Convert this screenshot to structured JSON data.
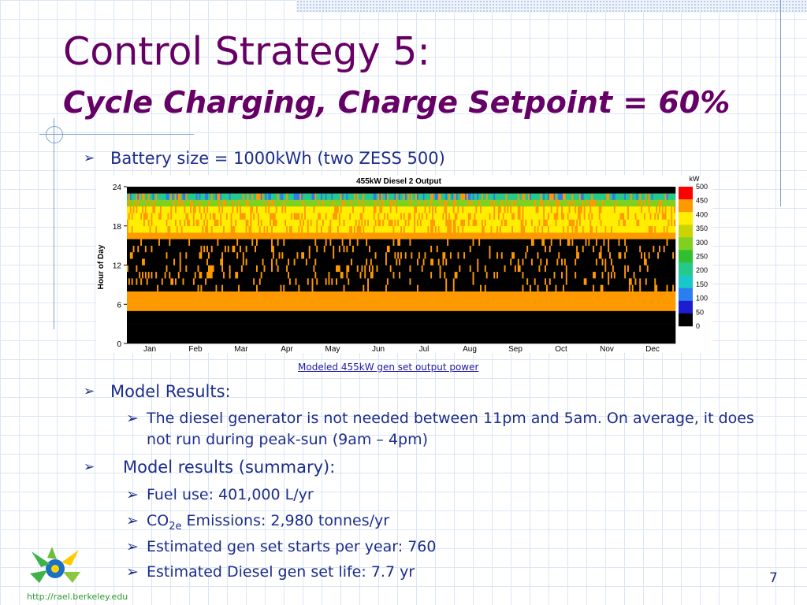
{
  "slide": {
    "title": "Control Strategy 5:",
    "subtitle": "Cycle Charging, Charge Setpoint = 60%",
    "page_number": "7",
    "footer_url": "http://rael.berkeley.edu"
  },
  "bullets": {
    "battery": "Battery size = 1000kWh (two ZESS 500)",
    "model_results": "Model Results:",
    "model_results_sub": [
      "The diesel generator is not needed between 11pm and 5am.  On average, it does",
      "not run during peak-sun (9am – 4pm)"
    ],
    "summary": "Model results (summary):",
    "summary_items": {
      "fuel": "Fuel use: 401,000 L/yr",
      "co2_prefix": "CO",
      "co2_subscript": "2e",
      "co2_rest": " Emissions: 2,980 tonnes/yr",
      "starts": "Estimated gen set starts per year: 760",
      "life": "Estimated Diesel gen set life: 7.7 yr"
    }
  },
  "caption": "Modeled 455kW gen set output power",
  "chart_data": {
    "type": "heatmap",
    "title": "455kW Diesel 2 Output",
    "xlabel": "",
    "ylabel": "Hour of Day",
    "x": [
      "Jan",
      "Feb",
      "Mar",
      "Apr",
      "May",
      "Jun",
      "Jul",
      "Aug",
      "Sep",
      "Oct",
      "Nov",
      "Dec"
    ],
    "yticks": [
      0,
      6,
      12,
      18,
      24
    ],
    "ylim": [
      0,
      24
    ],
    "colorbar": {
      "unit": "kW",
      "ticks": [
        0,
        50,
        100,
        150,
        200,
        250,
        300,
        350,
        400,
        450,
        500
      ],
      "colors": [
        "#000000",
        "#1c1cd0",
        "#2a7ef0",
        "#18c8c8",
        "#26c98c",
        "#2fbf2f",
        "#80d020",
        "#ccd400",
        "#ffee00",
        "#ff9900",
        "#ff0000"
      ]
    },
    "profile_by_hour_kw": [
      0,
      0,
      0,
      0,
      0,
      455,
      455,
      455,
      0,
      0,
      0,
      0,
      0,
      0,
      0,
      0,
      455,
      420,
      400,
      400,
      380,
      300,
      200,
      0
    ],
    "legend": "right"
  }
}
